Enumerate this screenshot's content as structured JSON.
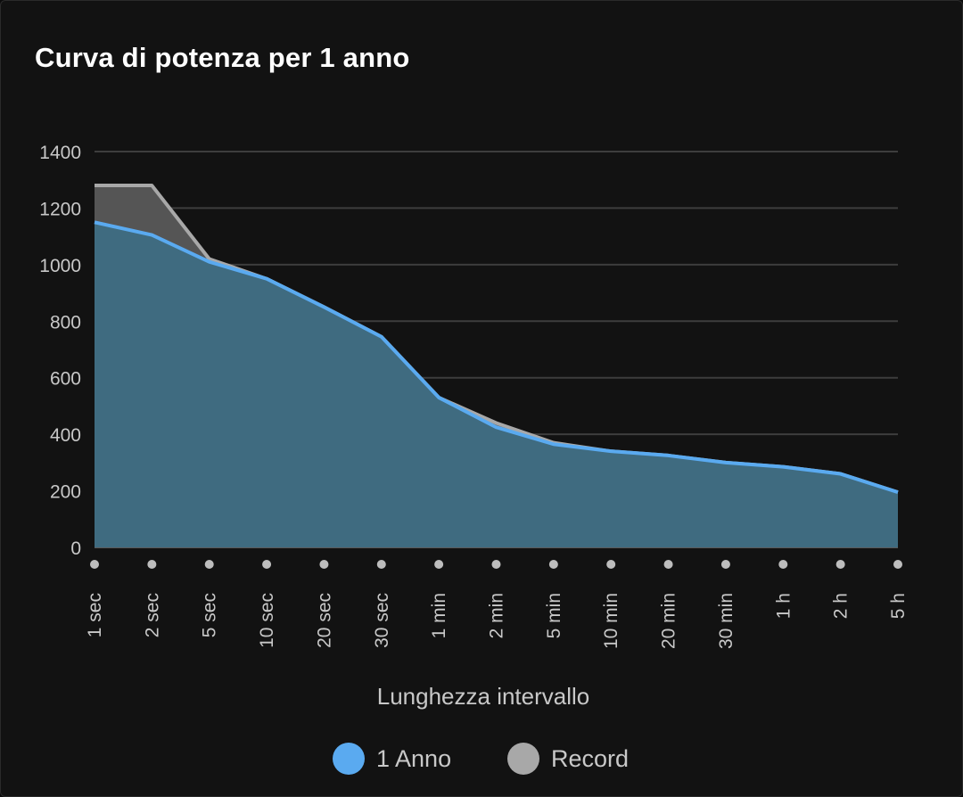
{
  "chart_data": {
    "type": "area",
    "title": "Curva di potenza per 1 anno",
    "xlabel": "Lunghezza intervallo",
    "ylabel": "",
    "ylim": [
      0,
      1400
    ],
    "yticks": [
      0,
      200,
      400,
      600,
      800,
      1000,
      1200,
      1400
    ],
    "categories": [
      "1 sec",
      "2 sec",
      "5 sec",
      "10 sec",
      "20 sec",
      "30 sec",
      "1 min",
      "2 min",
      "5 min",
      "10 min",
      "20 min",
      "30 min",
      "1 h",
      "2 h",
      "5 h"
    ],
    "grid": true,
    "legend_position": "bottom",
    "series": [
      {
        "name": "1 Anno",
        "color": "#5aaaf0",
        "fill": "#3f6b80",
        "values": [
          1150,
          1105,
          1010,
          950,
          850,
          745,
          530,
          425,
          365,
          340,
          325,
          300,
          285,
          260,
          195
        ]
      },
      {
        "name": "Record",
        "color": "#a8a8a8",
        "fill": "#555555",
        "values": [
          1280,
          1280,
          1020,
          950,
          850,
          745,
          530,
          440,
          370,
          340,
          325,
          300,
          285,
          260,
          195
        ]
      }
    ]
  }
}
